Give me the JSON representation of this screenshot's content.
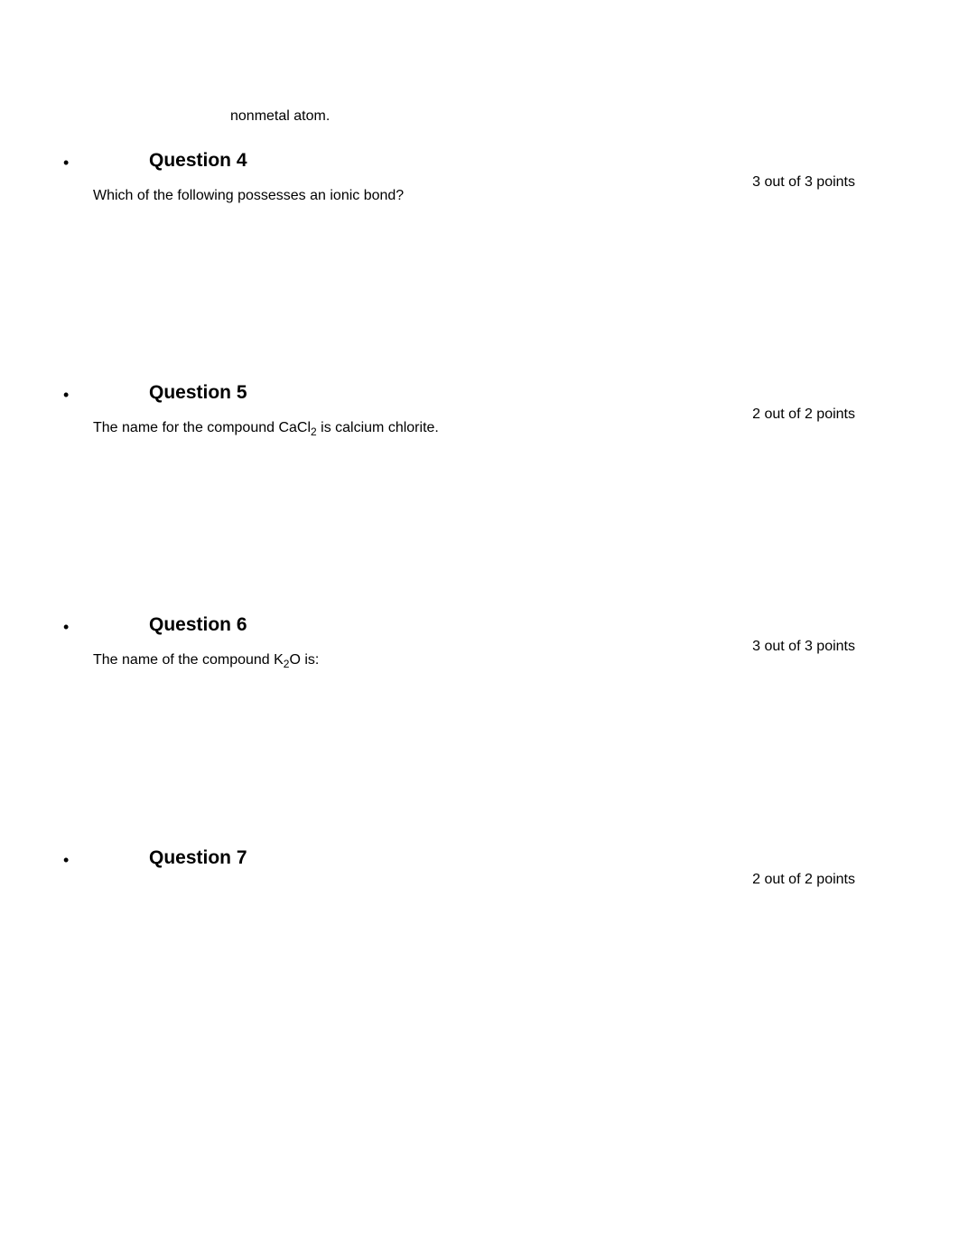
{
  "fragment": {
    "text": "nonmetal atom."
  },
  "questions": [
    {
      "title": "Question 4",
      "points": "3 out of 3 points",
      "text_before": "Which of the following possesses an ionic bond?",
      "formula": "",
      "text_after": ""
    },
    {
      "title": "Question 5",
      "points": "2 out of 2 points",
      "text_before": "The name for the compound CaCl",
      "formula": "2",
      "text_after": " is calcium chlorite."
    },
    {
      "title": "Question 6",
      "points": "3 out of 3 points",
      "text_before": "The name of the compound K",
      "formula": "2",
      "text_after": "O is:"
    },
    {
      "title": "Question 7",
      "points": "2 out of 2 points",
      "text_before": "",
      "formula": "",
      "text_after": ""
    }
  ],
  "styling": {
    "background_color": "#ffffff",
    "text_color": "#000000",
    "title_fontsize": 21,
    "body_fontsize": 16,
    "font_family": "Verdana"
  }
}
